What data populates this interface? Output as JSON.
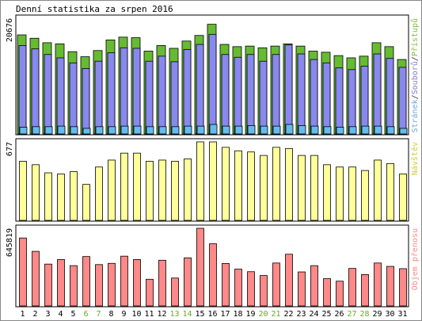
{
  "chart_data": {
    "type": "bar",
    "title": "Denní statistika za srpen 2016",
    "categories": [
      "1",
      "2",
      "3",
      "4",
      "5",
      "6",
      "7",
      "8",
      "9",
      "10",
      "11",
      "12",
      "13",
      "14",
      "15",
      "16",
      "17",
      "18",
      "19",
      "20",
      "21",
      "22",
      "23",
      "24",
      "25",
      "26",
      "27",
      "28",
      "29",
      "30",
      "31"
    ],
    "weekend_days": [
      "6",
      "7",
      "13",
      "14",
      "20",
      "21",
      "27",
      "28"
    ],
    "panels": [
      {
        "id": "pristupy",
        "ymax_label": "20676",
        "ylim": [
          0,
          20676
        ],
        "legend": [
          {
            "text": "Stránek",
            "color": "#6fa8dc"
          },
          {
            "text": "/",
            "color": "#333333"
          },
          {
            "text": "Souborů",
            "color": "#7f7fcc"
          },
          {
            "text": "/",
            "color": "#333333"
          },
          {
            "text": "Přístupů",
            "color": "#7fbf3f"
          }
        ],
        "series": [
          {
            "name": "Přístupů",
            "color": "#66bb33",
            "values": [
              17700,
              17100,
              16300,
              16100,
              14700,
              13800,
              14900,
              16800,
              17300,
              17200,
              14800,
              15800,
              15300,
              16600,
              17600,
              19600,
              16000,
              15600,
              15700,
              15400,
              15700,
              16100,
              15700,
              14800,
              14600,
              14000,
              13600,
              13900,
              16300,
              15600,
              13300
            ]
          },
          {
            "name": "Souborů",
            "color": "#8888ee",
            "values": [
              15800,
              15200,
              14200,
              13600,
              12700,
              11700,
              13000,
              14500,
              15400,
              15300,
              13000,
              13900,
              12900,
              15100,
              16000,
              17800,
              14200,
              13700,
              14200,
              13000,
              14200,
              15900,
              14300,
              13300,
              12700,
              11800,
              11500,
              12100,
              14300,
              13500,
              11900
            ]
          },
          {
            "name": "Stránek",
            "color": "#66bbee",
            "values": [
              1200,
              1300,
              1300,
              1400,
              1300,
              1000,
              1300,
              1300,
              1400,
              1400,
              1300,
              1300,
              1300,
              1400,
              1400,
              1700,
              1400,
              1400,
              1500,
              1400,
              1400,
              1700,
              1500,
              1400,
              1300,
              1200,
              1300,
              1400,
              1400,
              1300,
              1000
            ]
          }
        ]
      },
      {
        "id": "navstevy",
        "ymax_label": "677",
        "ylim": [
          0,
          677
        ],
        "legend": [
          {
            "text": "Návštěv",
            "color": "#cccc33"
          }
        ],
        "series": [
          {
            "name": "Návštěv",
            "color": "#ffff99",
            "values": [
              510,
              480,
              410,
              400,
              420,
              310,
              460,
              520,
              580,
              580,
              510,
              520,
              510,
              530,
              677,
              677,
              630,
              600,
              590,
              560,
              630,
              620,
              560,
              560,
              480,
              460,
              460,
              430,
              520,
              490,
              400
            ]
          }
        ]
      },
      {
        "id": "prenos",
        "ymax_label": "645819",
        "ylim": [
          0,
          645819
        ],
        "legend": [
          {
            "text": "Objem přenosu",
            "color": "#ff8888"
          }
        ],
        "series": [
          {
            "name": "Objem přenosu",
            "color": "#ff8888",
            "values": [
              565000,
              454000,
              348000,
              386000,
              335000,
              411000,
              344000,
              354000,
              414000,
              386000,
              222000,
              380000,
              232000,
              400000,
              645819,
              517000,
              353000,
              306000,
              285000,
              253000,
              357000,
              430000,
              283000,
              335000,
              227000,
              206000,
              312000,
              261000,
              357000,
              329000,
              310000
            ]
          }
        ]
      }
    ]
  }
}
